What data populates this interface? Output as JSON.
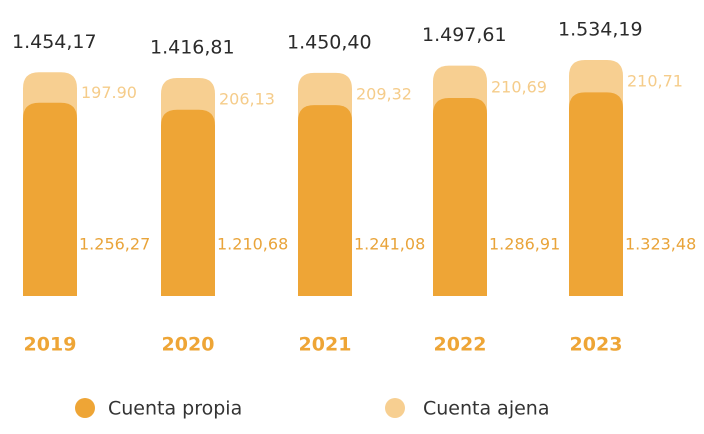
{
  "chart_data": {
    "type": "stacked_bar",
    "categories": [
      "2019",
      "2020",
      "2021",
      "2022",
      "2023"
    ],
    "series": [
      {
        "name": "Cuenta propia",
        "color": "#eea536",
        "values": [
          1256.27,
          1210.68,
          1241.08,
          1286.91,
          1323.48
        ],
        "value_labels": [
          "1.256,27",
          "1.210,68",
          "1.241,08",
          "1.286,91",
          "1.323,48"
        ]
      },
      {
        "name": "Cuenta ajena",
        "color": "#f7cf91",
        "values": [
          197.9,
          206.13,
          209.32,
          210.69,
          210.71
        ],
        "value_labels": [
          "197.90",
          "206,13",
          "209,32",
          "210,69",
          "210,71"
        ]
      }
    ],
    "totals": [
      1454.17,
      1416.81,
      1450.4,
      1497.61,
      1534.19
    ],
    "total_labels": [
      "1.454,17",
      "1.416,81",
      "1.450,40",
      "1.497,61",
      "1.534,19"
    ]
  }
}
